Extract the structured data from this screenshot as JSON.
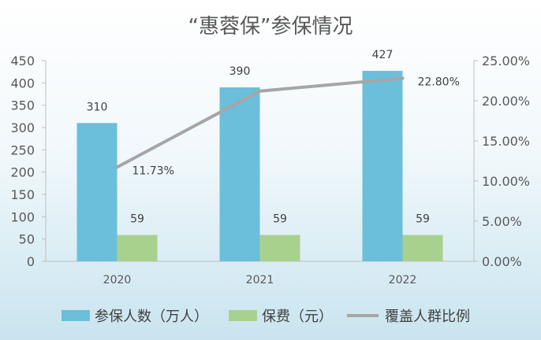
{
  "chart_data": {
    "type": "bar+line",
    "title": "“惠蓉保”参保情况",
    "categories": [
      "2020",
      "2021",
      "2022"
    ],
    "series": [
      {
        "name": "参保人数（万人）",
        "type": "bar",
        "axis": "left",
        "color": "#6bbfda",
        "values": [
          310,
          390,
          427
        ]
      },
      {
        "name": "保费（元）",
        "type": "bar",
        "axis": "left",
        "color": "#a9d18e",
        "values": [
          59,
          59,
          59
        ]
      },
      {
        "name": "覆盖人群比例",
        "type": "line",
        "axis": "right",
        "color": "#a6a6a6",
        "values": [
          11.73,
          21.2,
          22.8
        ],
        "labels": [
          "11.73%",
          "",
          "22.80%"
        ]
      }
    ],
    "y_left": {
      "min": 0,
      "max": 450,
      "step": 50,
      "ticks": [
        "0",
        "50",
        "100",
        "150",
        "200",
        "250",
        "300",
        "350",
        "400",
        "450"
      ]
    },
    "y_right": {
      "min": 0,
      "max": 25,
      "step": 5,
      "ticks": [
        "0.00%",
        "5.00%",
        "10.00%",
        "15.00%",
        "20.00%",
        "25.00%"
      ]
    },
    "legend_position": "bottom",
    "grid": false
  }
}
